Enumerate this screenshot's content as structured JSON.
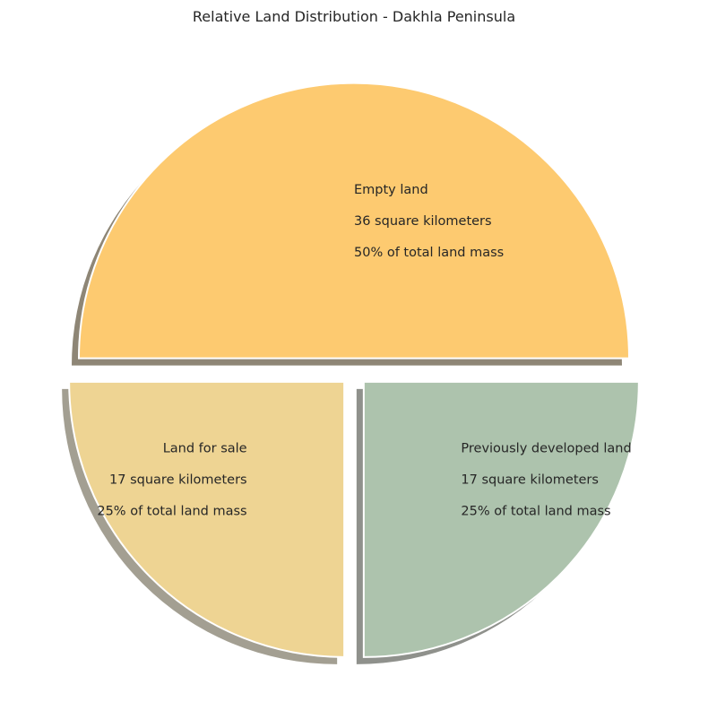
{
  "chart_data": {
    "type": "pie",
    "title": "Relative Land Distribution - Dakhla Peninsula",
    "slices": [
      {
        "name": "Empty land",
        "area_text": "36 square kilometers",
        "share_text": "50% of total land mass",
        "value": 50,
        "color": "#FDCA70"
      },
      {
        "name": "Land for sale",
        "area_text": "17 square kilometers",
        "share_text": "25% of total land mass",
        "value": 25,
        "color": "#EED493"
      },
      {
        "name": "Previously developed land",
        "area_text": "17 square kilometers",
        "share_text": "25% of total land mass",
        "value": 25,
        "color": "#ADC3AD"
      }
    ],
    "legend": "none",
    "shadow": true,
    "exploded": true
  }
}
